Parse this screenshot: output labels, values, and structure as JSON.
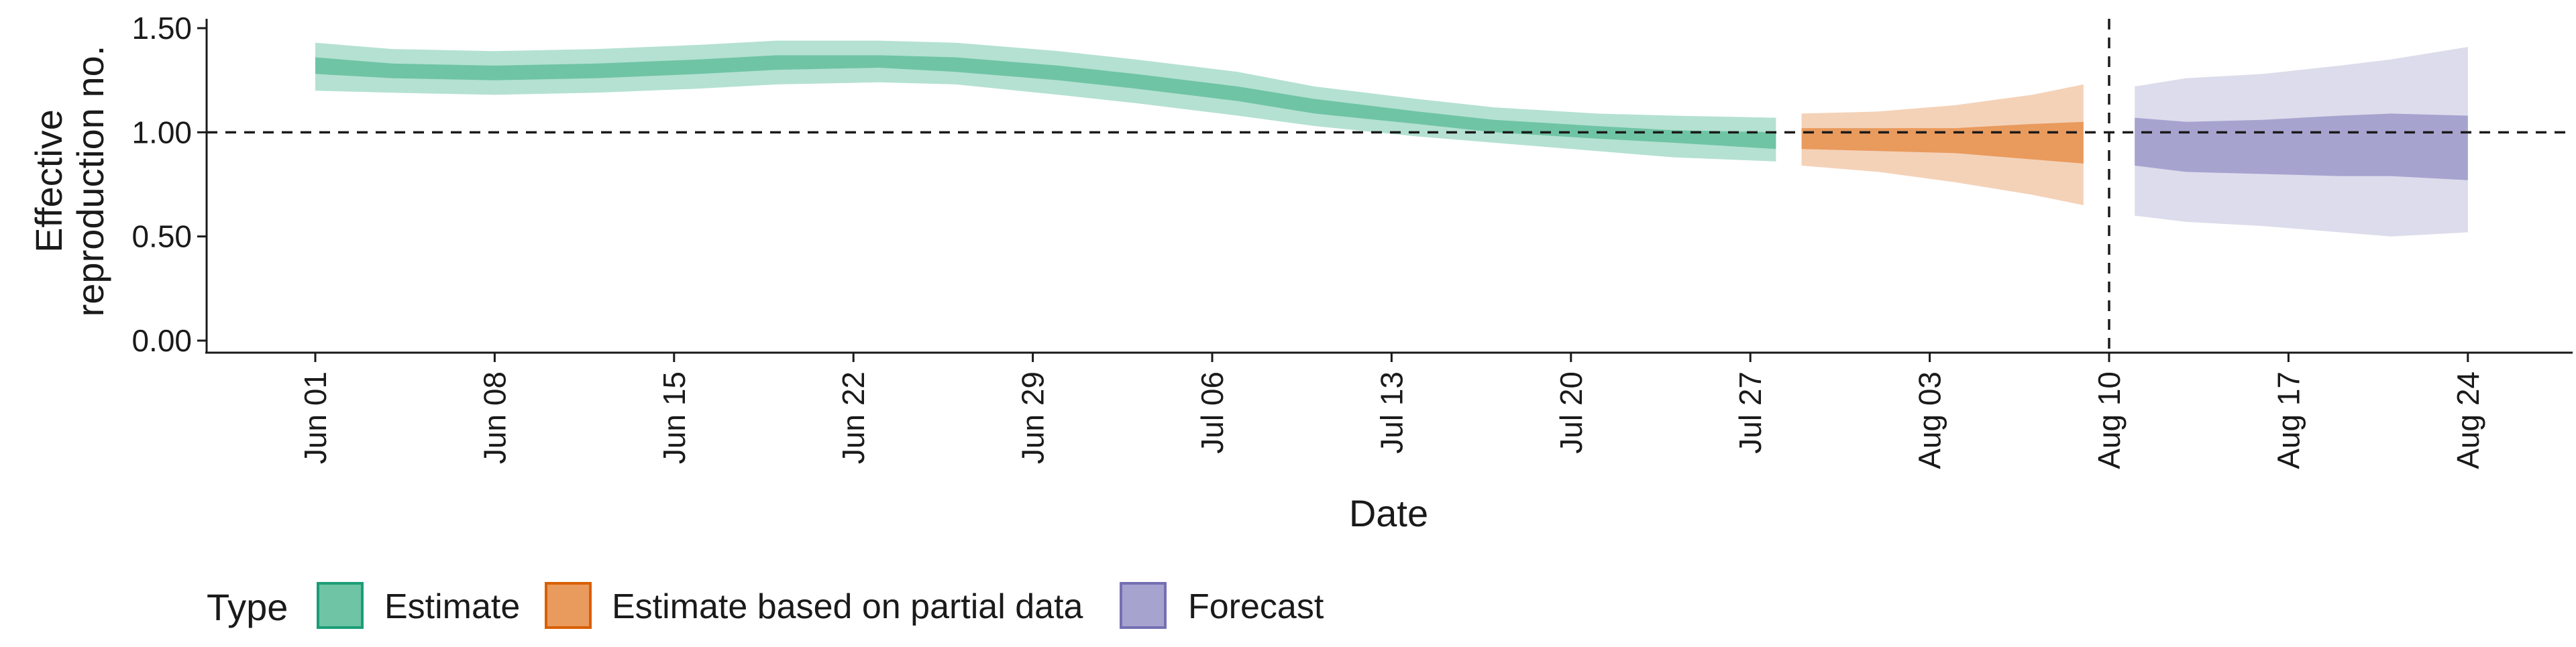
{
  "chart_data": {
    "type": "area",
    "ylabel_lines": [
      "Effective",
      "reproduction no."
    ],
    "xlabel": "Date",
    "ylim": [
      0,
      1.55
    ],
    "y_ticks": [
      {
        "value": 0.0,
        "label": "0.00"
      },
      {
        "value": 0.5,
        "label": "0.50"
      },
      {
        "value": 1.0,
        "label": "1.00"
      },
      {
        "value": 1.5,
        "label": "1.50"
      }
    ],
    "x_range": [
      "2020-05-25",
      "2020-08-31"
    ],
    "x_ticks": [
      {
        "date": "2020-06-01",
        "label": "Jun 01"
      },
      {
        "date": "2020-06-08",
        "label": "Jun 08"
      },
      {
        "date": "2020-06-15",
        "label": "Jun 15"
      },
      {
        "date": "2020-06-22",
        "label": "Jun 22"
      },
      {
        "date": "2020-06-29",
        "label": "Jun 29"
      },
      {
        "date": "2020-07-06",
        "label": "Jul 06"
      },
      {
        "date": "2020-07-13",
        "label": "Jul 13"
      },
      {
        "date": "2020-07-20",
        "label": "Jul 20"
      },
      {
        "date": "2020-07-27",
        "label": "Jul 27"
      },
      {
        "date": "2020-08-03",
        "label": "Aug 03"
      },
      {
        "date": "2020-08-10",
        "label": "Aug 10"
      },
      {
        "date": "2020-08-17",
        "label": "Aug 17"
      },
      {
        "date": "2020-08-24",
        "label": "Aug 24"
      }
    ],
    "hline": 1.0,
    "vline_date": "2020-08-10",
    "grid": false,
    "legend": {
      "title": "Type",
      "placement": "bottom",
      "entries": [
        "Estimate",
        "Estimate based on partial data",
        "Forecast"
      ]
    },
    "series": [
      {
        "name": "Estimate",
        "fill_outer": "#b4e1d2",
        "fill_inner": "#6fc4a5",
        "stroke": "#1b9e77",
        "points": [
          {
            "date": "2020-06-01",
            "lo90": 1.2,
            "lo50": 1.28,
            "hi50": 1.36,
            "hi90": 1.43
          },
          {
            "date": "2020-06-04",
            "lo90": 1.19,
            "lo50": 1.26,
            "hi50": 1.33,
            "hi90": 1.4
          },
          {
            "date": "2020-06-08",
            "lo90": 1.18,
            "lo50": 1.25,
            "hi50": 1.32,
            "hi90": 1.39
          },
          {
            "date": "2020-06-12",
            "lo90": 1.19,
            "lo50": 1.26,
            "hi50": 1.33,
            "hi90": 1.4
          },
          {
            "date": "2020-06-16",
            "lo90": 1.21,
            "lo50": 1.28,
            "hi50": 1.35,
            "hi90": 1.42
          },
          {
            "date": "2020-06-19",
            "lo90": 1.23,
            "lo50": 1.3,
            "hi50": 1.37,
            "hi90": 1.44
          },
          {
            "date": "2020-06-23",
            "lo90": 1.24,
            "lo50": 1.31,
            "hi50": 1.37,
            "hi90": 1.44
          },
          {
            "date": "2020-06-26",
            "lo90": 1.23,
            "lo50": 1.29,
            "hi50": 1.36,
            "hi90": 1.43
          },
          {
            "date": "2020-06-30",
            "lo90": 1.18,
            "lo50": 1.25,
            "hi50": 1.32,
            "hi90": 1.39
          },
          {
            "date": "2020-07-03",
            "lo90": 1.14,
            "lo50": 1.21,
            "hi50": 1.28,
            "hi90": 1.35
          },
          {
            "date": "2020-07-07",
            "lo90": 1.08,
            "lo50": 1.15,
            "hi50": 1.22,
            "hi90": 1.29
          },
          {
            "date": "2020-07-10",
            "lo90": 1.03,
            "lo50": 1.09,
            "hi50": 1.16,
            "hi90": 1.22
          },
          {
            "date": "2020-07-14",
            "lo90": 0.98,
            "lo50": 1.04,
            "hi50": 1.1,
            "hi90": 1.16
          },
          {
            "date": "2020-07-17",
            "lo90": 0.95,
            "lo50": 1.0,
            "hi50": 1.06,
            "hi90": 1.12
          },
          {
            "date": "2020-07-21",
            "lo90": 0.91,
            "lo50": 0.97,
            "hi50": 1.03,
            "hi90": 1.09
          },
          {
            "date": "2020-07-24",
            "lo90": 0.88,
            "lo50": 0.95,
            "hi50": 1.01,
            "hi90": 1.08
          },
          {
            "date": "2020-07-28",
            "lo90": 0.86,
            "lo50": 0.92,
            "hi50": 1.0,
            "hi90": 1.07
          }
        ]
      },
      {
        "name": "Estimate based on partial data",
        "fill_outer": "#f4d2b8",
        "fill_inner": "#e99a5d",
        "stroke": "#d95f02",
        "points": [
          {
            "date": "2020-07-29",
            "lo90": 0.84,
            "lo50": 0.92,
            "hi50": 1.02,
            "hi90": 1.09
          },
          {
            "date": "2020-08-01",
            "lo90": 0.81,
            "lo50": 0.91,
            "hi50": 1.02,
            "hi90": 1.1
          },
          {
            "date": "2020-08-04",
            "lo90": 0.76,
            "lo50": 0.9,
            "hi50": 1.02,
            "hi90": 1.13
          },
          {
            "date": "2020-08-07",
            "lo90": 0.7,
            "lo50": 0.87,
            "hi50": 1.04,
            "hi90": 1.18
          },
          {
            "date": "2020-08-09",
            "lo90": 0.65,
            "lo50": 0.85,
            "hi50": 1.05,
            "hi90": 1.23
          }
        ]
      },
      {
        "name": "Forecast",
        "fill_outer": "#dcdcec",
        "fill_inner": "#a7a3cf",
        "stroke": "#7570b3",
        "points": [
          {
            "date": "2020-08-11",
            "lo90": 0.6,
            "lo50": 0.84,
            "hi50": 1.07,
            "hi90": 1.22
          },
          {
            "date": "2020-08-13",
            "lo90": 0.57,
            "lo50": 0.81,
            "hi50": 1.05,
            "hi90": 1.26
          },
          {
            "date": "2020-08-16",
            "lo90": 0.55,
            "lo50": 0.8,
            "hi50": 1.06,
            "hi90": 1.28
          },
          {
            "date": "2020-08-19",
            "lo90": 0.52,
            "lo50": 0.79,
            "hi50": 1.08,
            "hi90": 1.32
          },
          {
            "date": "2020-08-21",
            "lo90": 0.5,
            "lo50": 0.79,
            "hi50": 1.09,
            "hi90": 1.35
          },
          {
            "date": "2020-08-24",
            "lo90": 0.52,
            "lo50": 0.77,
            "hi50": 1.08,
            "hi90": 1.41
          }
        ]
      }
    ]
  }
}
